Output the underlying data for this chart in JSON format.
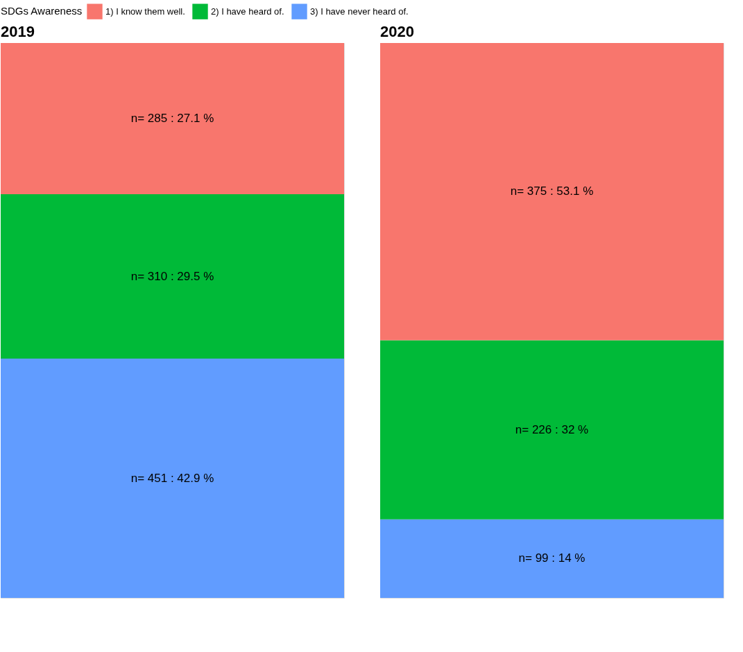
{
  "chart_data": [
    {
      "type": "bar",
      "title": "2019",
      "stacked": true,
      "categories": [
        null
      ],
      "legend": "top",
      "legend_title": "SDGs Awareness",
      "tick_labels": false,
      "grid": false,
      "series": [
        {
          "name": "3) I have never heard of.",
          "color": "#619cff",
          "values": [
            451
          ],
          "value_labels": [
            "n= 451 : 42.9 %"
          ]
        },
        {
          "name": "2) I have heard of.",
          "color": "#00ba38",
          "values": [
            310
          ],
          "value_labels": [
            "n= 310 : 29.5 %"
          ]
        },
        {
          "name": "1) I know them well.",
          "color": "#f8766d",
          "values": [
            285
          ],
          "value_labels": [
            "n= 285 : 27.1 %"
          ]
        }
      ]
    },
    {
      "type": "bar",
      "title": "2020",
      "stacked": true,
      "categories": [
        null
      ],
      "tick_labels": false,
      "grid": false,
      "series": [
        {
          "name": "3) I have never heard of.",
          "color": "#619cff",
          "values": [
            99
          ],
          "value_labels": [
            "n= 99 : 14 %"
          ]
        },
        {
          "name": "2) I have heard of.",
          "color": "#00ba38",
          "values": [
            226
          ],
          "value_labels": [
            "n= 226 : 32 %"
          ]
        },
        {
          "name": "1) I know them well.",
          "color": "#f8766d",
          "values": [
            375
          ],
          "value_labels": [
            "n= 375 : 53.1 %"
          ]
        }
      ]
    }
  ]
}
